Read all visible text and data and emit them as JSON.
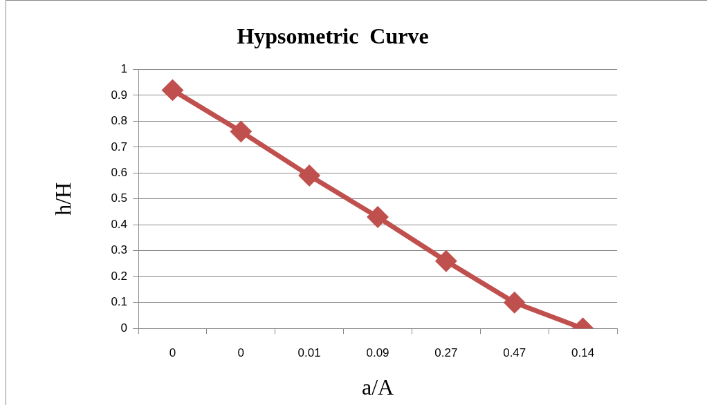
{
  "chart_data": {
    "type": "line",
    "title": "Hypsometric  Curve",
    "xlabel": "a/A",
    "ylabel": "h/H",
    "categories": [
      "0",
      "0",
      "0.01",
      "0.09",
      "0.27",
      "0.47",
      "0.14"
    ],
    "series": [
      {
        "color": "#c0504d",
        "values": [
          0.92,
          0.76,
          0.59,
          0.43,
          0.26,
          0.1,
          0.0
        ]
      }
    ],
    "ylim": [
      0,
      1
    ],
    "yticks": [
      0,
      0.1,
      0.2,
      0.3,
      0.4,
      0.5,
      0.6,
      0.7,
      0.8,
      0.9,
      1
    ],
    "grid": "y",
    "legend": false,
    "marker": "diamond",
    "line_style": "solid"
  }
}
